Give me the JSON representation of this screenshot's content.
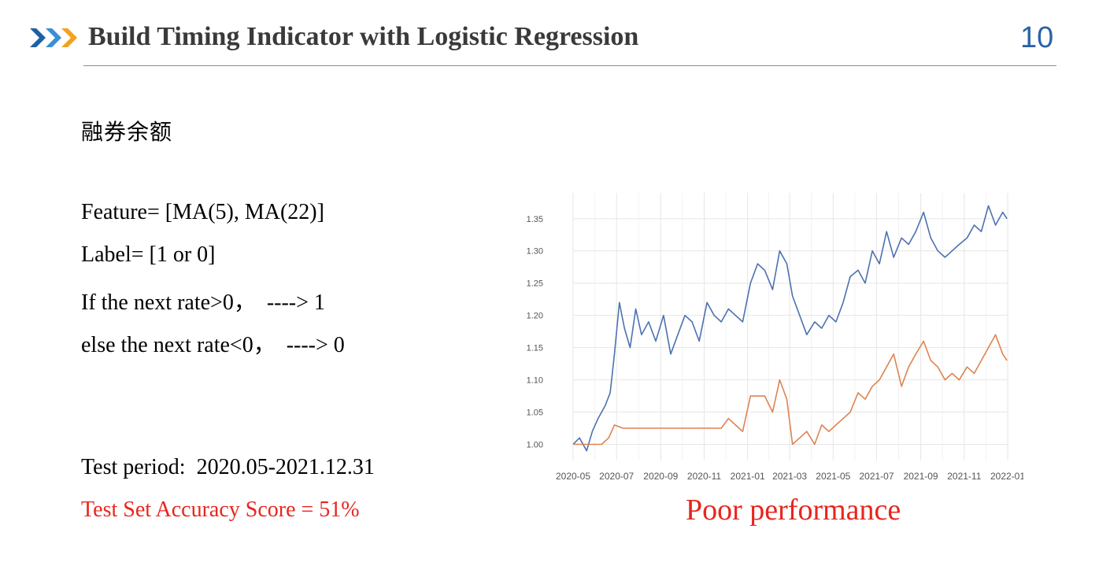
{
  "header": {
    "title": "Build Timing Indicator with Logistic Regression",
    "page_number": "10",
    "icon": "triple-chevron-icon",
    "colors": {
      "chevron_dark": "#1f5fa8",
      "chevron_mid": "#3a8fd6",
      "chevron_orange": "#f5a11f",
      "page_number": "#2b63a6"
    }
  },
  "subtitle": "融券余额",
  "body": {
    "feature": "Feature= [MA(5), MA(22)]",
    "label": "Label= [1 or 0]",
    "rule_up": "If the next rate>0，  ----> 1",
    "rule_down": "else the next rate<0，  ----> 0",
    "test_period": "Test period:  2020.05-2021.12.31",
    "accuracy": "Test Set Accuracy Score = 51%",
    "accuracy_color": "#e8251d"
  },
  "chart_caption": "Poor performance",
  "chart_data": {
    "type": "line",
    "title": "",
    "xlabel": "",
    "ylabel": "",
    "x_ticks": [
      "2020-05",
      "2020-07",
      "2020-09",
      "2020-11",
      "2021-01",
      "2021-03",
      "2021-05",
      "2021-07",
      "2021-09",
      "2021-11",
      "2022-01"
    ],
    "y_ticks": [
      "1.00",
      "1.05",
      "1.10",
      "1.15",
      "1.20",
      "1.25",
      "1.30",
      "1.35"
    ],
    "ylim": [
      0.975,
      1.39
    ],
    "xlim": [
      "2020-05-01",
      "2022-01-01"
    ],
    "grid": true,
    "series": [
      {
        "color": "#4c72b0",
        "x": [
          "2020-05-01",
          "2020-05-10",
          "2020-05-20",
          "2020-05-28",
          "2020-06-05",
          "2020-06-15",
          "2020-06-22",
          "2020-06-28",
          "2020-07-05",
          "2020-07-12",
          "2020-07-20",
          "2020-07-28",
          "2020-08-05",
          "2020-08-15",
          "2020-08-25",
          "2020-09-05",
          "2020-09-15",
          "2020-09-25",
          "2020-10-05",
          "2020-10-15",
          "2020-10-25",
          "2020-11-05",
          "2020-11-15",
          "2020-11-25",
          "2020-12-05",
          "2020-12-15",
          "2020-12-25",
          "2021-01-05",
          "2021-01-15",
          "2021-01-25",
          "2021-02-05",
          "2021-02-15",
          "2021-02-25",
          "2021-03-05",
          "2021-03-15",
          "2021-03-25",
          "2021-04-05",
          "2021-04-15",
          "2021-04-25",
          "2021-05-05",
          "2021-05-15",
          "2021-05-25",
          "2021-06-05",
          "2021-06-15",
          "2021-06-25",
          "2021-07-05",
          "2021-07-15",
          "2021-07-25",
          "2021-08-05",
          "2021-08-15",
          "2021-08-25",
          "2021-09-05",
          "2021-09-15",
          "2021-09-25",
          "2021-10-05",
          "2021-10-15",
          "2021-10-25",
          "2021-11-05",
          "2021-11-15",
          "2021-11-25",
          "2021-12-05",
          "2021-12-15",
          "2021-12-25",
          "2021-12-31"
        ],
        "y": [
          1.0,
          1.01,
          0.99,
          1.02,
          1.04,
          1.06,
          1.08,
          1.14,
          1.22,
          1.18,
          1.15,
          1.21,
          1.17,
          1.19,
          1.16,
          1.2,
          1.14,
          1.17,
          1.2,
          1.19,
          1.16,
          1.22,
          1.2,
          1.19,
          1.21,
          1.2,
          1.19,
          1.25,
          1.28,
          1.27,
          1.24,
          1.3,
          1.28,
          1.23,
          1.2,
          1.17,
          1.19,
          1.18,
          1.2,
          1.19,
          1.22,
          1.26,
          1.27,
          1.25,
          1.3,
          1.28,
          1.33,
          1.29,
          1.32,
          1.31,
          1.33,
          1.36,
          1.32,
          1.3,
          1.29,
          1.3,
          1.31,
          1.32,
          1.34,
          1.33,
          1.37,
          1.34,
          1.36,
          1.35
        ]
      },
      {
        "color": "#dd8452",
        "x": [
          "2020-05-01",
          "2020-06-10",
          "2020-06-20",
          "2020-06-28",
          "2020-07-10",
          "2020-08-10",
          "2020-09-10",
          "2020-10-10",
          "2020-11-10",
          "2020-11-25",
          "2020-12-05",
          "2020-12-15",
          "2020-12-25",
          "2021-01-05",
          "2021-01-15",
          "2021-01-25",
          "2021-02-05",
          "2021-02-15",
          "2021-02-25",
          "2021-03-05",
          "2021-03-15",
          "2021-03-25",
          "2021-04-05",
          "2021-04-15",
          "2021-04-25",
          "2021-05-05",
          "2021-05-15",
          "2021-05-25",
          "2021-06-05",
          "2021-06-15",
          "2021-06-25",
          "2021-07-05",
          "2021-07-15",
          "2021-07-25",
          "2021-08-05",
          "2021-08-15",
          "2021-08-25",
          "2021-09-05",
          "2021-09-15",
          "2021-09-25",
          "2021-10-05",
          "2021-10-15",
          "2021-10-25",
          "2021-11-05",
          "2021-11-15",
          "2021-11-25",
          "2021-12-05",
          "2021-12-15",
          "2021-12-25",
          "2021-12-31"
        ],
        "y": [
          1.0,
          1.0,
          1.01,
          1.03,
          1.025,
          1.025,
          1.025,
          1.025,
          1.025,
          1.025,
          1.04,
          1.03,
          1.02,
          1.075,
          1.075,
          1.075,
          1.05,
          1.1,
          1.07,
          1.0,
          1.01,
          1.02,
          1.0,
          1.03,
          1.02,
          1.03,
          1.04,
          1.05,
          1.08,
          1.07,
          1.09,
          1.1,
          1.12,
          1.14,
          1.09,
          1.12,
          1.14,
          1.16,
          1.13,
          1.12,
          1.1,
          1.11,
          1.1,
          1.12,
          1.11,
          1.13,
          1.15,
          1.17,
          1.14,
          1.13
        ]
      }
    ]
  }
}
